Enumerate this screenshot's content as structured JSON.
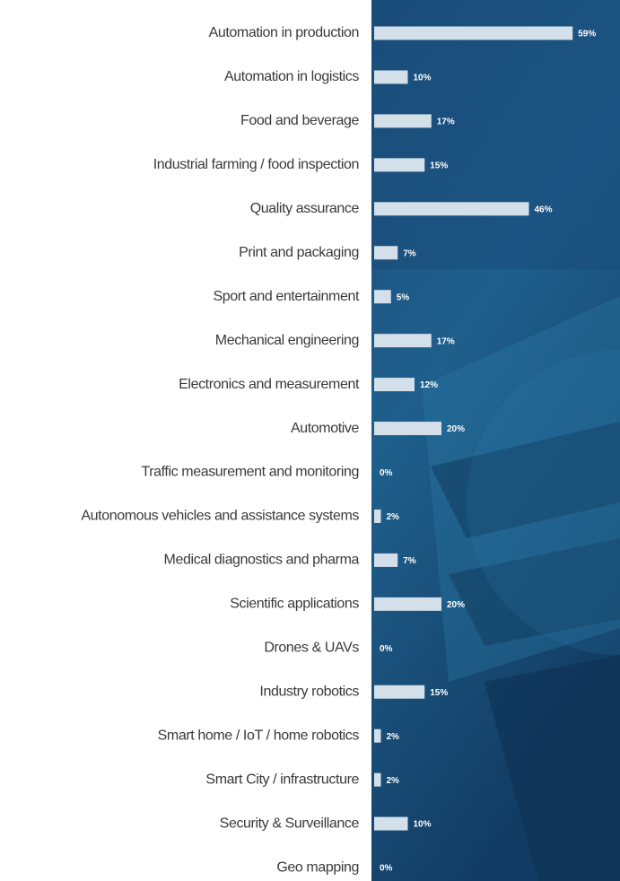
{
  "chart_data": {
    "type": "bar",
    "orientation": "horizontal",
    "color": "#d3e0ea",
    "categories": [
      "Automation in production",
      "Automation in logistics",
      "Food and beverage",
      "Industrial farming / food inspection",
      "Quality assurance",
      "Print and packaging",
      "Sport and entertainment",
      "Mechanical engineering",
      "Electronics and measurement",
      "Automotive",
      "Traffic measurement and monitoring",
      "Autonomous vehicles and assistance systems",
      "Medical diagnostics and pharma",
      "Scientific applications",
      "Drones & UAVs",
      "Industry robotics",
      "Smart home / IoT / home robotics",
      "Smart City / infrastructure",
      "Security & Surveillance",
      "Geo mapping"
    ],
    "values": [
      59,
      10,
      17,
      15,
      46,
      7,
      5,
      17,
      12,
      20,
      0,
      2,
      7,
      20,
      0,
      15,
      2,
      2,
      10,
      0
    ],
    "value_labels": [
      "59%",
      "10%",
      "17%",
      "15%",
      "46%",
      "7%",
      "5%",
      "17%",
      "12%",
      "20%",
      "0%",
      "2%",
      "7%",
      "20%",
      "0%",
      "15%",
      "2%",
      "2%",
      "10%",
      "0%"
    ]
  }
}
